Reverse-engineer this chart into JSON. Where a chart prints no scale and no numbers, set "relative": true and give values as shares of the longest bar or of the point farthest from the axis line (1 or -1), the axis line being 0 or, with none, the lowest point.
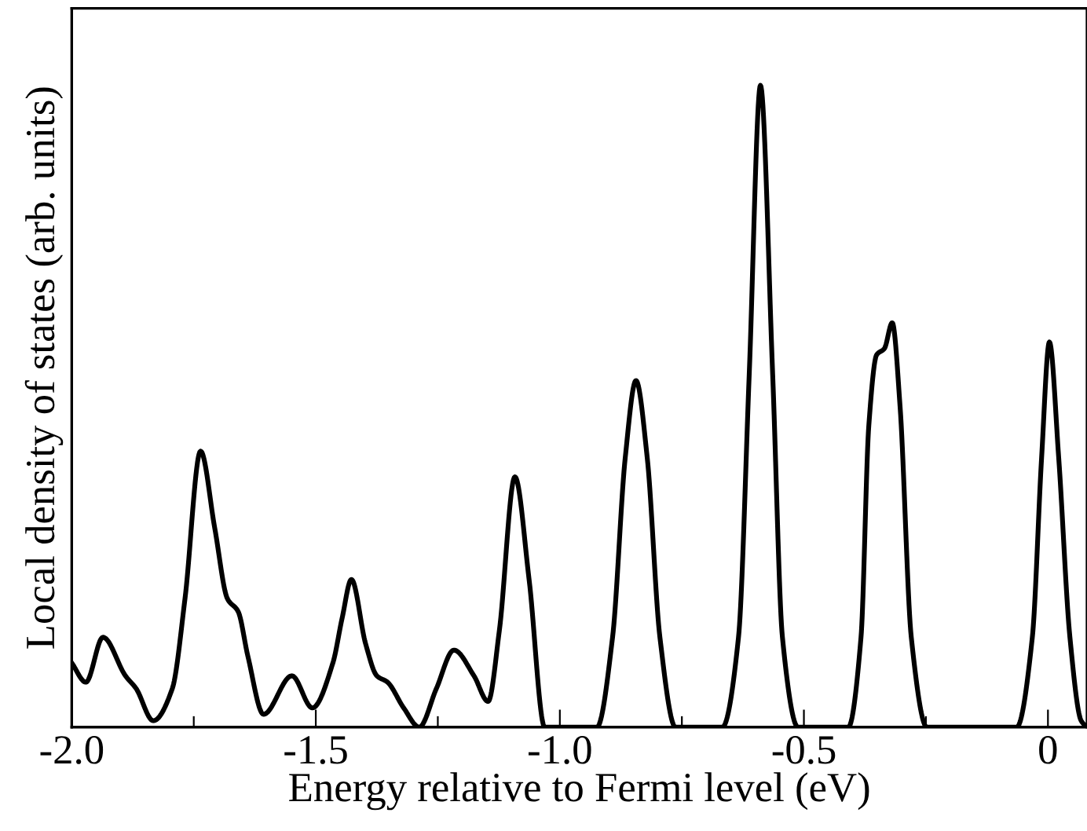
{
  "chart_data": {
    "type": "line",
    "relative": true,
    "xlabel": "Energy relative to Fermi level (eV)",
    "ylabel": "Local density of states (arb. units)",
    "xlim": [
      -2.0,
      0.08
    ],
    "xticks": [
      {
        "value": -2.0,
        "label": "-2.0"
      },
      {
        "value": -1.75,
        "label": null
      },
      {
        "value": -1.5,
        "label": "-1.5"
      },
      {
        "value": -1.25,
        "label": null
      },
      {
        "value": -1.0,
        "label": "-1.0"
      },
      {
        "value": -0.75,
        "label": null
      },
      {
        "value": -0.5,
        "label": "-0.5"
      },
      {
        "value": -0.25,
        "label": null
      },
      {
        "value": 0,
        "label": "0"
      }
    ],
    "grid": false,
    "legend": false,
    "marker": "none",
    "line_style": "solid",
    "series": [
      {
        "color": "#000000",
        "x": [
          -2.0,
          -1.971,
          -1.936,
          -1.89,
          -1.868,
          -1.833,
          -1.794,
          -1.768,
          -1.736,
          -1.707,
          -1.681,
          -1.659,
          -1.639,
          -1.607,
          -1.549,
          -1.507,
          -1.465,
          -1.446,
          -1.427,
          -1.398,
          -1.375,
          -1.353,
          -1.32,
          -1.288,
          -1.253,
          -1.217,
          -1.176,
          -1.147,
          -1.124,
          -1.092,
          -1.063,
          -1.031,
          -0.924,
          -0.892,
          -0.866,
          -0.844,
          -0.821,
          -0.795,
          -0.763,
          -0.667,
          -0.634,
          -0.612,
          -0.589,
          -0.564,
          -0.544,
          -0.512,
          -0.409,
          -0.383,
          -0.367,
          -0.351,
          -0.335,
          -0.319,
          -0.303,
          -0.28,
          -0.248,
          -0.064,
          -0.032,
          -0.013,
          0.003,
          0.022,
          0.045,
          0.068,
          0.08
        ],
        "values": [
          0.1,
          0.07,
          0.14,
          0.08,
          0.06,
          0.01,
          0.06,
          0.2,
          0.43,
          0.31,
          0.2,
          0.18,
          0.11,
          0.02,
          0.08,
          0.03,
          0.1,
          0.17,
          0.23,
          0.13,
          0.08,
          0.07,
          0.03,
          0.0,
          0.06,
          0.12,
          0.08,
          0.04,
          0.15,
          0.39,
          0.23,
          0.0,
          0.0,
          0.14,
          0.42,
          0.54,
          0.42,
          0.14,
          0.0,
          0.0,
          0.14,
          0.55,
          1.0,
          0.55,
          0.14,
          0.0,
          0.0,
          0.14,
          0.47,
          0.58,
          0.59,
          0.63,
          0.5,
          0.14,
          0.0,
          0.0,
          0.14,
          0.42,
          0.6,
          0.42,
          0.14,
          0.01,
          0.0
        ]
      }
    ]
  }
}
